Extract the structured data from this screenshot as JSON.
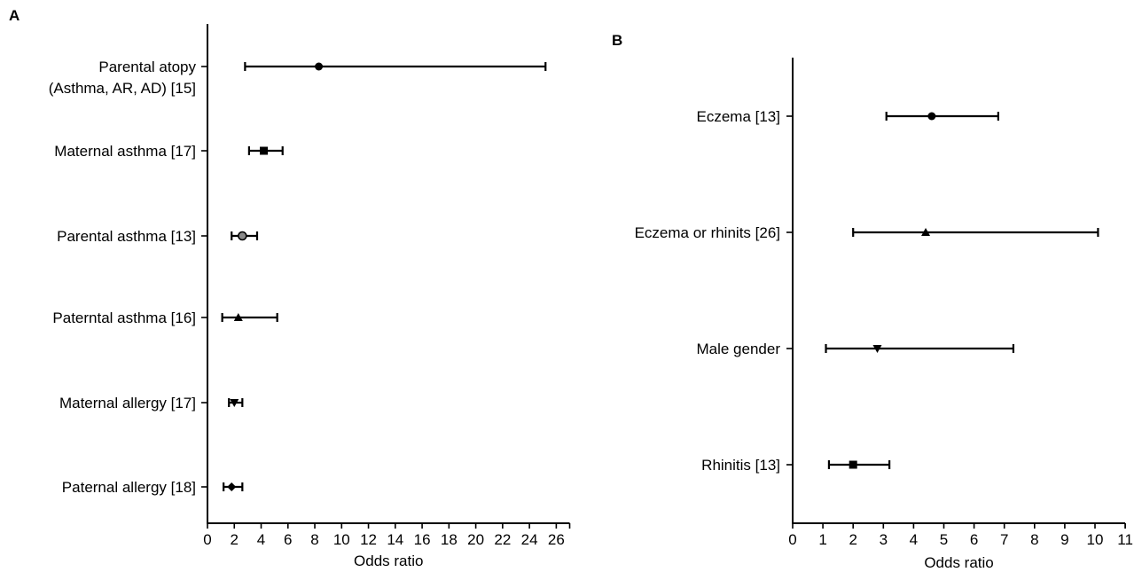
{
  "chart_data": [
    {
      "panel": "A",
      "type": "forest",
      "xlabel": "Odds ratio",
      "xlim": [
        0,
        27
      ],
      "xticks": [
        0,
        2,
        4,
        6,
        8,
        10,
        12,
        14,
        16,
        18,
        20,
        22,
        24,
        26
      ],
      "rows": [
        {
          "label": "Parental atopy",
          "label2": "(Asthma, AR, AD) [15]",
          "or": 8.3,
          "lo": 2.8,
          "hi": 25.2,
          "marker": "circle"
        },
        {
          "label": "Maternal asthma [17]",
          "or": 4.2,
          "lo": 3.1,
          "hi": 5.6,
          "marker": "square"
        },
        {
          "label": "Parental asthma [13]",
          "or": 2.6,
          "lo": 1.8,
          "hi": 3.7,
          "marker": "circle-gray"
        },
        {
          "label": "Paterntal asthma [16]",
          "or": 2.3,
          "lo": 1.1,
          "hi": 5.2,
          "marker": "triangle-up"
        },
        {
          "label": "Maternal allergy [17]",
          "or": 2.0,
          "lo": 1.6,
          "hi": 2.6,
          "marker": "triangle-down"
        },
        {
          "label": "Paternal allergy [18]",
          "or": 1.8,
          "lo": 1.2,
          "hi": 2.6,
          "marker": "diamond"
        }
      ]
    },
    {
      "panel": "B",
      "type": "forest",
      "xlabel": "Odds ratio",
      "xlim": [
        0,
        11
      ],
      "xticks": [
        0,
        1,
        2,
        3,
        4,
        5,
        6,
        7,
        8,
        9,
        10,
        11
      ],
      "rows": [
        {
          "label": "Eczema [13]",
          "or": 4.6,
          "lo": 3.1,
          "hi": 6.8,
          "marker": "circle"
        },
        {
          "label": "Eczema or rhinits [26]",
          "or": 4.4,
          "lo": 2.0,
          "hi": 10.1,
          "marker": "triangle-up"
        },
        {
          "label": "Male gender",
          "or": 2.8,
          "lo": 1.1,
          "hi": 7.3,
          "marker": "triangle-down"
        },
        {
          "label": "Rhinitis [13]",
          "or": 2.0,
          "lo": 1.2,
          "hi": 3.2,
          "marker": "square"
        }
      ]
    }
  ]
}
